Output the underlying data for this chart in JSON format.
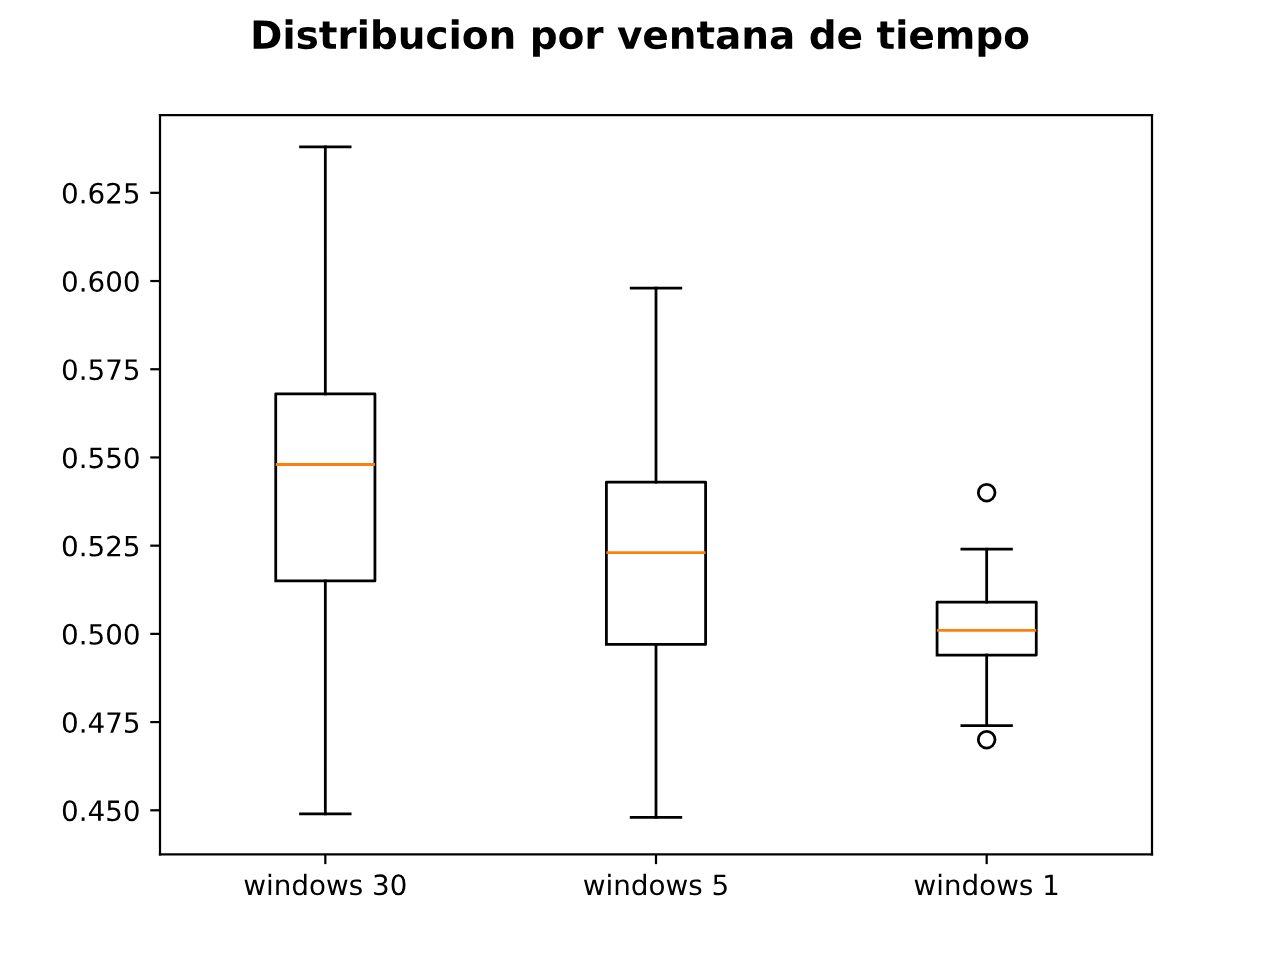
{
  "chart_data": {
    "type": "box",
    "title": "Distribucion por ventana de tiempo",
    "categories": [
      "windows 30",
      "windows 5",
      "windows 1"
    ],
    "boxes": [
      {
        "low": 0.449,
        "q1": 0.515,
        "median": 0.548,
        "q3": 0.568,
        "high": 0.638
      },
      {
        "low": 0.448,
        "q1": 0.497,
        "median": 0.523,
        "q3": 0.543,
        "high": 0.598
      },
      {
        "low": 0.474,
        "q1": 0.494,
        "median": 0.501,
        "q3": 0.509,
        "high": 0.524,
        "outliers": [
          0.54,
          0.47
        ]
      }
    ],
    "color": "#000000",
    "ylim": [
      0.4375,
      0.647
    ],
    "yticks": [
      {
        "value": 0.45,
        "label": "0.450"
      },
      0.475,
      {
        "value": 0.5,
        "label": "0.500"
      },
      0.525,
      {
        "value": 0.55,
        "label": "0.550"
      },
      0.575,
      {
        "value": 0.6,
        "label": "0.600"
      },
      0.625
    ],
    "grid": false
  }
}
